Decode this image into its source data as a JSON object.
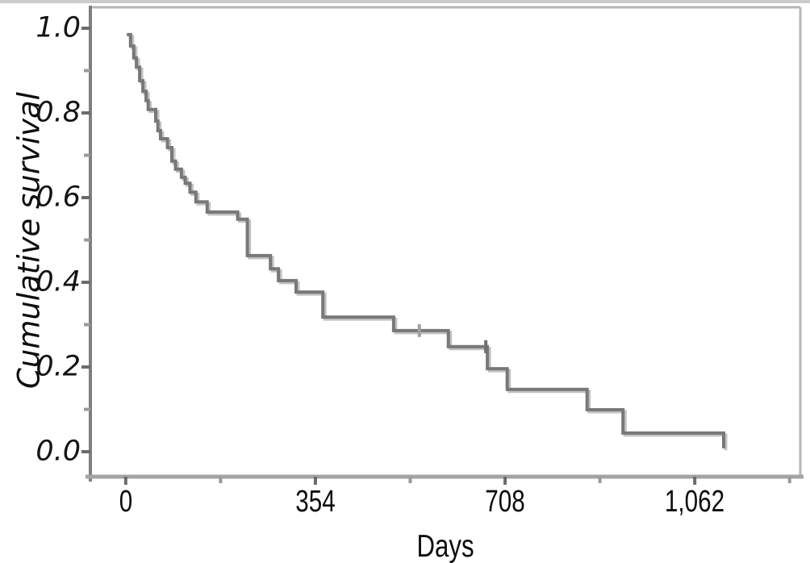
{
  "chart_data": {
    "type": "line",
    "subtype": "kaplan-meier-step",
    "title": "",
    "xlabel": "Days",
    "ylabel": "Cumulative survival",
    "xlim": [
      -66,
      1259
    ],
    "ylim": [
      -0.059,
      1.0495
    ],
    "grid": false,
    "legend": "none",
    "x_ticks_major": [
      0,
      354,
      708,
      1062
    ],
    "x_tick_labels": [
      "0",
      "354",
      "708",
      "1,062"
    ],
    "x_ticks_minor": [
      177,
      531,
      885,
      1239
    ],
    "y_ticks_major": [
      0.0,
      0.2,
      0.4,
      0.6,
      0.8,
      1.0
    ],
    "y_tick_labels": [
      "0.0",
      "0.2",
      "0.4",
      "0.6",
      "0.8",
      "1.0"
    ],
    "y_ticks_minor": [
      0.1,
      0.3,
      0.5,
      0.7,
      0.9
    ],
    "series": [
      {
        "name": "cumulative-survival",
        "step": true,
        "points": [
          [
            2,
            0.985
          ],
          [
            9,
            0.958
          ],
          [
            15,
            0.93
          ],
          [
            20,
            0.908
          ],
          [
            26,
            0.876
          ],
          [
            32,
            0.851
          ],
          [
            38,
            0.829
          ],
          [
            42,
            0.808
          ],
          [
            56,
            0.781
          ],
          [
            60,
            0.758
          ],
          [
            65,
            0.739
          ],
          [
            78,
            0.718
          ],
          [
            86,
            0.686
          ],
          [
            93,
            0.667
          ],
          [
            104,
            0.648
          ],
          [
            111,
            0.634
          ],
          [
            120,
            0.613
          ],
          [
            131,
            0.59
          ],
          [
            152,
            0.566
          ],
          [
            209,
            0.549
          ],
          [
            227,
            0.463
          ],
          [
            270,
            0.432
          ],
          [
            285,
            0.404
          ],
          [
            318,
            0.377
          ],
          [
            368,
            0.318
          ],
          [
            500,
            0.286
          ],
          [
            602,
            0.248
          ],
          [
            675,
            0.196
          ],
          [
            712,
            0.147
          ],
          [
            861,
            0.099
          ],
          [
            928,
            0.044
          ],
          [
            1116,
            0.008
          ]
        ]
      }
    ],
    "censored_points": [
      {
        "day": 548,
        "survival": 0.286
      },
      {
        "day": 672,
        "survival": 0.248
      }
    ],
    "colors": {
      "curve": "#787878",
      "curve_echo": "#c2c2c2",
      "axis_left": "#7e7e7e",
      "axis_bottom": "#a3a3a3",
      "frame": "#b6b6b6",
      "tick_major": "#6b6b6b",
      "tick_minor": "#9a9a9a",
      "censor_mark_light": "#a0a0a0",
      "censor_mark_dark": "#6e6e6e",
      "text": "#0d0d0d"
    }
  }
}
